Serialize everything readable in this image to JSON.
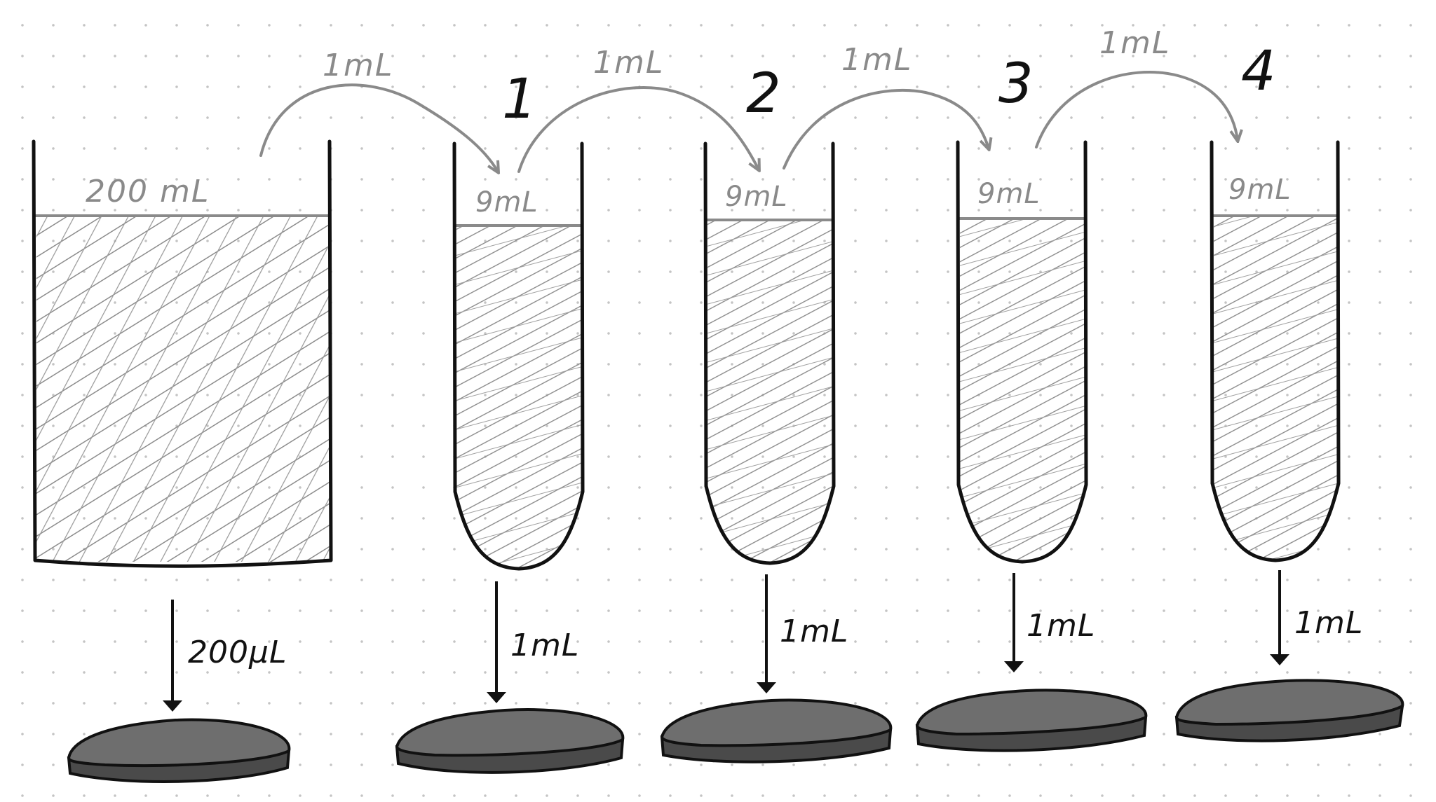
{
  "containers": [
    {
      "kind": "beaker",
      "label": "",
      "volume_label": "200 mL",
      "plating_label": "200µL"
    },
    {
      "kind": "tube",
      "label": "1",
      "volume_label": "9mL",
      "plating_label": "1mL"
    },
    {
      "kind": "tube",
      "label": "2",
      "volume_label": "9mL",
      "plating_label": "1mL"
    },
    {
      "kind": "tube",
      "label": "3",
      "volume_label": "9mL",
      "plating_label": "1mL"
    },
    {
      "kind": "tube",
      "label": "4",
      "volume_label": "9mL",
      "plating_label": "1mL"
    }
  ],
  "transfers": [
    {
      "label": "1mL"
    },
    {
      "label": "1mL"
    },
    {
      "label": "1mL"
    },
    {
      "label": "1mL"
    }
  ],
  "colors": {
    "outline": "#111111",
    "liquid_line": "#8a8a8a",
    "hatch": "#8c8c8c",
    "plate_fill": "#6e6e6e",
    "plate_shadow": "#4a4a4a"
  }
}
